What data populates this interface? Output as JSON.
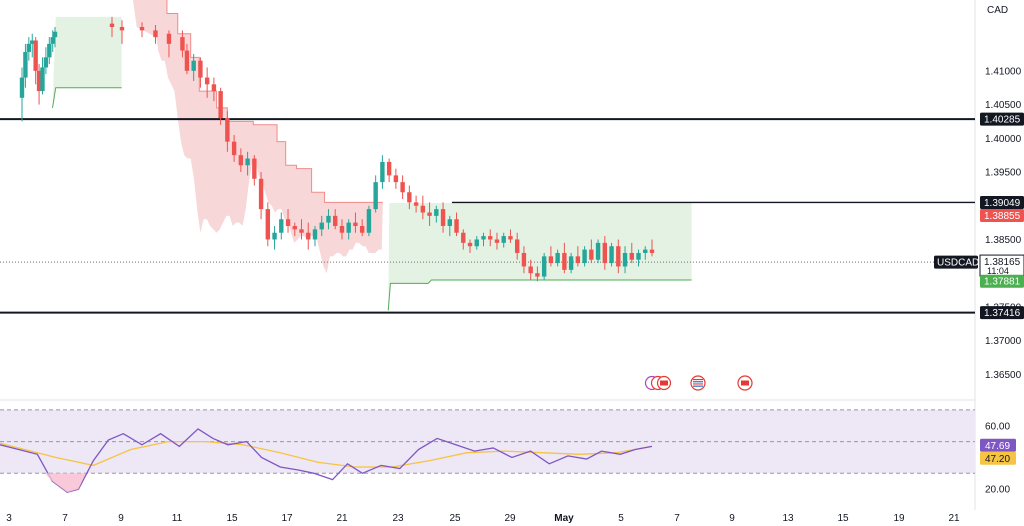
{
  "chart_data": {
    "type": "candlestick",
    "symbol": "USDCAD",
    "currency": "CAD",
    "colors": {
      "up": "#26a69a",
      "down": "#ef5350",
      "stop_bear_fill": "#f8d7d9",
      "stop_bear_line": "#f28b8b",
      "stop_bull_fill": "#e3f2e3",
      "stop_bull_line": "#4caf50",
      "rsi": "#7e57c2",
      "rsi_ma": "#f6c343",
      "rsi_band": "#ede7f6",
      "price_badge": "#ef5350",
      "stop_badge": "#4caf50",
      "level_badge": "#131722"
    },
    "price_axis": {
      "ylim": [
        1.3615,
        1.4205
      ],
      "ticks": [
        "1.41000",
        "1.40500",
        "1.40000",
        "1.39500",
        "1.38500",
        "1.37500",
        "1.37000",
        "1.36500"
      ]
    },
    "time_axis": {
      "ticks": [
        {
          "day": 3,
          "label": "3"
        },
        {
          "day": 7,
          "label": "7"
        },
        {
          "day": 9,
          "label": "9"
        },
        {
          "day": 11,
          "label": "11"
        },
        {
          "day": 15,
          "label": "15"
        },
        {
          "day": 17,
          "label": "17"
        },
        {
          "day": 21,
          "label": "21"
        },
        {
          "day": 23,
          "label": "23"
        },
        {
          "day": 25,
          "label": "25"
        },
        {
          "day": 29,
          "label": "29"
        },
        {
          "day": 31,
          "label": "May",
          "bold": true
        },
        {
          "day": 35,
          "label": "5"
        },
        {
          "day": 37,
          "label": "7"
        },
        {
          "day": 39,
          "label": "9"
        },
        {
          "day": 41,
          "label": "13"
        },
        {
          "day": 43,
          "label": "15"
        },
        {
          "day": 45,
          "label": "19"
        },
        {
          "day": 47,
          "label": "21"
        }
      ]
    },
    "horizontal_levels": [
      {
        "value": 1.40285,
        "label": "1.40285",
        "thick": true,
        "from_day": 3
      },
      {
        "value": 1.39049,
        "label": "1.39049",
        "thick": false,
        "from_day": 23.7
      },
      {
        "value": 1.37416,
        "label": "1.37416",
        "thick": true,
        "from_day": 3
      }
    ],
    "current_price": {
      "value": 1.38165,
      "label": "1.38165",
      "countdown": "11:04"
    },
    "stop_levels": [
      {
        "value": 1.38855,
        "label": "1.38855",
        "color": "#ef5350"
      },
      {
        "value": 1.37881,
        "label": "1.37881",
        "color": "#4caf50"
      }
    ],
    "candles": [
      [
        3.1,
        1.406,
        1.4105,
        1.4025,
        1.409
      ],
      [
        3.4,
        1.409,
        1.414,
        1.4075,
        1.4128
      ],
      [
        3.7,
        1.4128,
        1.415,
        1.4115,
        1.414
      ],
      [
        4.0,
        1.414,
        1.4155,
        1.412,
        1.4145
      ],
      [
        4.3,
        1.4145,
        1.415,
        1.408,
        1.41
      ],
      [
        4.6,
        1.41,
        1.411,
        1.405,
        1.407
      ],
      [
        4.9,
        1.407,
        1.412,
        1.4065,
        1.4105
      ],
      [
        5.2,
        1.4105,
        1.4135,
        1.4095,
        1.412
      ],
      [
        5.5,
        1.412,
        1.415,
        1.411,
        1.414
      ],
      [
        5.8,
        1.414,
        1.416,
        1.4128,
        1.415
      ],
      [
        6.0,
        1.415,
        1.4165,
        1.4135,
        1.4158
      ],
      [
        8.4,
        1.417,
        1.418,
        1.415,
        1.4165
      ],
      [
        8.7,
        1.4165,
        1.4175,
        1.414,
        1.416
      ],
      [
        9.1,
        1.4165,
        1.4172,
        1.415,
        1.416
      ],
      [
        9.4,
        1.416,
        1.4168,
        1.414,
        1.415
      ],
      [
        9.7,
        1.4155,
        1.416,
        1.412,
        1.414
      ],
      [
        10.0,
        1.415,
        1.416,
        1.412,
        1.413
      ],
      [
        10.1,
        1.413,
        1.414,
        1.4095,
        1.41
      ],
      [
        10.25,
        1.41,
        1.4125,
        1.4085,
        1.4115
      ],
      [
        10.4,
        1.4115,
        1.412,
        1.4075,
        1.409
      ],
      [
        10.55,
        1.409,
        1.4105,
        1.406,
        1.408
      ],
      [
        10.7,
        1.408,
        1.409,
        1.4055,
        1.407
      ],
      [
        10.85,
        1.407,
        1.4075,
        1.402,
        1.403
      ],
      [
        11.0,
        1.403,
        1.404,
        1.398,
        1.3995
      ],
      [
        11.15,
        1.3995,
        1.4005,
        1.3965,
        1.3975
      ],
      [
        11.3,
        1.3975,
        1.3985,
        1.395,
        1.396
      ],
      [
        11.45,
        1.396,
        1.398,
        1.3945,
        1.397
      ],
      [
        11.6,
        1.397,
        1.3975,
        1.393,
        1.394
      ],
      [
        11.75,
        1.394,
        1.395,
        1.388,
        1.3895
      ],
      [
        11.9,
        1.3895,
        1.3905,
        1.384,
        1.385
      ],
      [
        12.05,
        1.385,
        1.387,
        1.3835,
        1.386
      ],
      [
        12.2,
        1.386,
        1.389,
        1.385,
        1.388
      ],
      [
        12.35,
        1.388,
        1.3895,
        1.386,
        1.387
      ],
      [
        12.5,
        1.387,
        1.3875,
        1.3855,
        1.3865
      ],
      [
        12.65,
        1.3865,
        1.388,
        1.385,
        1.386
      ],
      [
        12.8,
        1.386,
        1.3875,
        1.3835,
        1.385
      ],
      [
        12.95,
        1.385,
        1.387,
        1.384,
        1.3865
      ],
      [
        13.1,
        1.3865,
        1.3885,
        1.3855,
        1.3875
      ],
      [
        13.25,
        1.3875,
        1.3895,
        1.3865,
        1.3885
      ],
      [
        13.4,
        1.3885,
        1.3895,
        1.3865,
        1.387
      ],
      [
        13.55,
        1.387,
        1.388,
        1.385,
        1.386
      ],
      [
        13.7,
        1.386,
        1.388,
        1.385,
        1.3875
      ],
      [
        13.85,
        1.3875,
        1.389,
        1.386,
        1.387
      ],
      [
        14.0,
        1.387,
        1.388,
        1.3855,
        1.386
      ],
      [
        14.15,
        1.386,
        1.39,
        1.3855,
        1.3895
      ],
      [
        14.3,
        1.3895,
        1.3945,
        1.389,
        1.3935
      ],
      [
        14.45,
        1.3935,
        1.3975,
        1.3925,
        1.3965
      ],
      [
        14.6,
        1.3965,
        1.397,
        1.3935,
        1.3945
      ],
      [
        14.75,
        1.3945,
        1.3955,
        1.3925,
        1.3935
      ],
      [
        14.9,
        1.3935,
        1.3945,
        1.391,
        1.392
      ],
      [
        15.05,
        1.392,
        1.393,
        1.3895,
        1.3905
      ],
      [
        15.2,
        1.3905,
        1.3915,
        1.389,
        1.39
      ],
      [
        15.35,
        1.39,
        1.3915,
        1.388,
        1.389
      ],
      [
        15.5,
        1.389,
        1.3905,
        1.387,
        1.3885
      ],
      [
        15.65,
        1.3885,
        1.39,
        1.3875,
        1.3895
      ],
      [
        15.8,
        1.3895,
        1.3905,
        1.386,
        1.387
      ],
      [
        15.95,
        1.387,
        1.3885,
        1.3855,
        1.388
      ],
      [
        16.1,
        1.388,
        1.389,
        1.3855,
        1.386
      ],
      [
        16.25,
        1.386,
        1.3865,
        1.3835,
        1.3845
      ],
      [
        16.4,
        1.3845,
        1.385,
        1.383,
        1.384
      ],
      [
        16.55,
        1.384,
        1.3855,
        1.3835,
        1.385
      ],
      [
        16.7,
        1.385,
        1.386,
        1.384,
        1.3855
      ],
      [
        16.85,
        1.3855,
        1.3865,
        1.384,
        1.385
      ],
      [
        17.0,
        1.385,
        1.386,
        1.3835,
        1.3845
      ],
      [
        17.15,
        1.3845,
        1.386,
        1.3838,
        1.3855
      ],
      [
        17.3,
        1.3855,
        1.3865,
        1.3845,
        1.385
      ],
      [
        17.45,
        1.385,
        1.386,
        1.382,
        1.383
      ],
      [
        17.6,
        1.383,
        1.384,
        1.38,
        1.381
      ],
      [
        17.75,
        1.381,
        1.382,
        1.379,
        1.38
      ],
      [
        17.9,
        1.38,
        1.381,
        1.3788,
        1.3795
      ],
      [
        18.05,
        1.3795,
        1.383,
        1.379,
        1.3825
      ],
      [
        18.2,
        1.3825,
        1.384,
        1.381,
        1.3815
      ],
      [
        18.35,
        1.3815,
        1.3835,
        1.381,
        1.383
      ],
      [
        18.5,
        1.383,
        1.3845,
        1.38,
        1.3805
      ],
      [
        18.65,
        1.3805,
        1.383,
        1.38,
        1.3825
      ],
      [
        18.8,
        1.3825,
        1.384,
        1.381,
        1.3815
      ],
      [
        18.95,
        1.3815,
        1.384,
        1.381,
        1.3835
      ],
      [
        19.1,
        1.3835,
        1.385,
        1.3815,
        1.382
      ],
      [
        19.25,
        1.382,
        1.385,
        1.3815,
        1.3845
      ],
      [
        19.4,
        1.3845,
        1.3855,
        1.3805,
        1.3815
      ],
      [
        19.55,
        1.3815,
        1.3845,
        1.381,
        1.384
      ],
      [
        19.7,
        1.384,
        1.385,
        1.38,
        1.381
      ],
      [
        19.85,
        1.381,
        1.384,
        1.38,
        1.383
      ],
      [
        20.0,
        1.383,
        1.3845,
        1.3815,
        1.382
      ],
      [
        20.15,
        1.382,
        1.3835,
        1.381,
        1.383
      ],
      [
        20.3,
        1.383,
        1.384,
        1.382,
        1.3835
      ],
      [
        20.45,
        1.3835,
        1.385,
        1.3825,
        1.383
      ]
    ],
    "rsi": {
      "ylim": [
        10,
        75
      ],
      "upper_band": 70,
      "lower_band": 30,
      "mid_line": 50,
      "tick_labels": [
        "60.00",
        "20.00"
      ],
      "current_value": "47.69",
      "ma_value": "47.20",
      "values": [
        [
          3,
          48
        ],
        [
          3.5,
          45
        ],
        [
          4,
          42
        ],
        [
          4.4,
          25
        ],
        [
          4.8,
          18
        ],
        [
          5.1,
          20
        ],
        [
          5.5,
          38
        ],
        [
          5.9,
          51
        ],
        [
          6.3,
          55
        ],
        [
          6.8,
          48
        ],
        [
          7.3,
          55
        ],
        [
          7.8,
          47
        ],
        [
          8.3,
          58
        ],
        [
          8.7,
          52
        ],
        [
          9.1,
          48
        ],
        [
          9.6,
          50
        ],
        [
          10.0,
          40
        ],
        [
          10.5,
          34
        ],
        [
          11.0,
          32
        ],
        [
          11.4,
          30
        ],
        [
          11.9,
          26
        ],
        [
          12.3,
          36
        ],
        [
          12.7,
          30
        ],
        [
          13.2,
          35
        ],
        [
          13.7,
          33
        ],
        [
          14.2,
          45
        ],
        [
          14.7,
          52
        ],
        [
          15.2,
          48
        ],
        [
          15.7,
          44
        ],
        [
          16.2,
          46
        ],
        [
          16.7,
          40
        ],
        [
          17.2,
          44
        ],
        [
          17.7,
          36
        ],
        [
          18.2,
          41
        ],
        [
          18.7,
          39
        ],
        [
          19.1,
          44
        ],
        [
          19.6,
          42
        ],
        [
          20.0,
          45
        ],
        [
          20.45,
          47
        ]
      ],
      "ma_values": [
        [
          3,
          49
        ],
        [
          4.5,
          40
        ],
        [
          5.5,
          35
        ],
        [
          6.5,
          45
        ],
        [
          7.5,
          50
        ],
        [
          8.5,
          50
        ],
        [
          9.5,
          48
        ],
        [
          10.5,
          43
        ],
        [
          11.5,
          37
        ],
        [
          12.5,
          34
        ],
        [
          13.5,
          34
        ],
        [
          14.5,
          38
        ],
        [
          15.5,
          43
        ],
        [
          16.5,
          44
        ],
        [
          17.5,
          43
        ],
        [
          18.5,
          42
        ],
        [
          19.5,
          43
        ],
        [
          20.45,
          47
        ]
      ]
    },
    "event_icons": [
      {
        "day": 34.6,
        "icon": "calendar-flags-icon"
      },
      {
        "day": 35.8,
        "icon": "us-flag-icon"
      },
      {
        "day": 38.2,
        "icon": "ca-flag-icon"
      }
    ]
  }
}
